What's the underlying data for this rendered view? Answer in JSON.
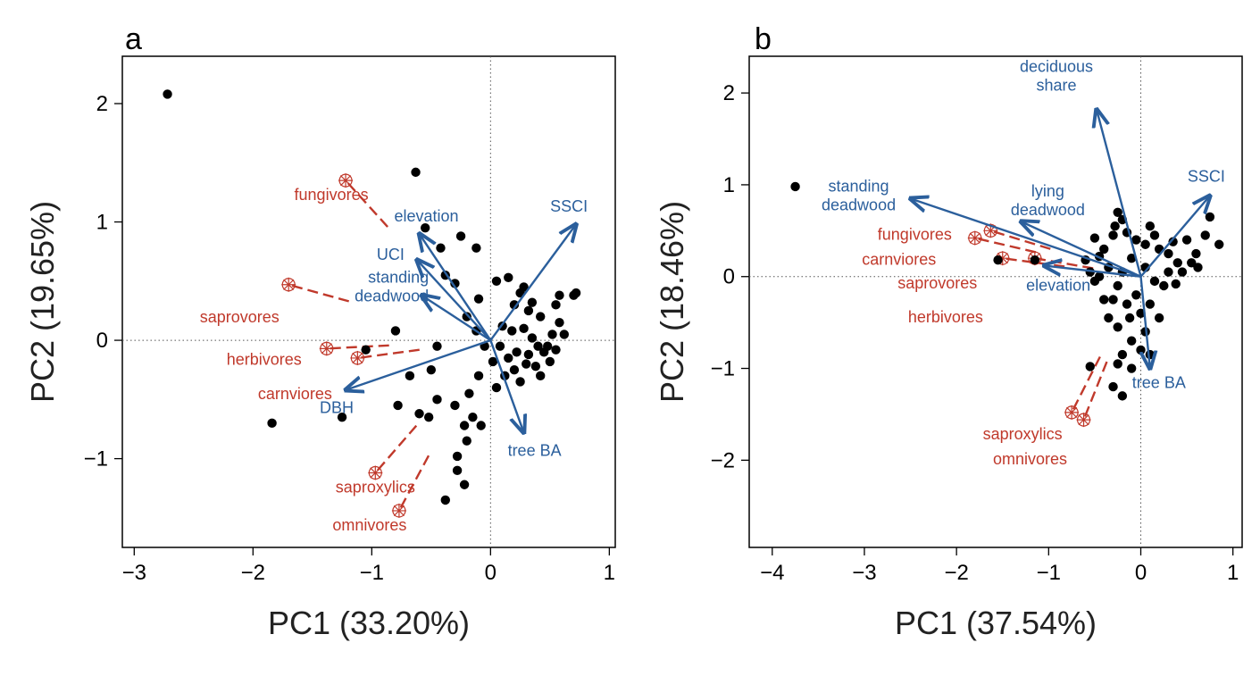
{
  "colors": {
    "env": "#2b5f9c",
    "group": "#c0392b",
    "point": "#000000",
    "refline": "#555555"
  },
  "chart_data": [
    {
      "type": "scatter",
      "panel_label": "a",
      "xlabel": "PC1 (33.20%)",
      "ylabel": "PC2 (19.65%)",
      "xlim": [
        -3.1,
        1.05
      ],
      "ylim": [
        -1.75,
        2.4
      ],
      "xticks": [
        -3,
        -2,
        -1,
        0,
        1
      ],
      "yticks": [
        -1,
        0,
        1,
        2
      ],
      "x_tick_labels": [
        "−3",
        "−2",
        "−1",
        "0",
        "1"
      ],
      "y_tick_labels": [
        "−1",
        "0",
        "1",
        "2"
      ],
      "ref_lines": {
        "x": 0,
        "y": 0,
        "style": "dotted"
      },
      "points": [
        [
          -2.72,
          2.08
        ],
        [
          -1.84,
          -0.7
        ],
        [
          -1.25,
          -0.65
        ],
        [
          -0.63,
          1.42
        ],
        [
          -0.55,
          0.95
        ],
        [
          -0.42,
          0.78
        ],
        [
          -0.38,
          0.55
        ],
        [
          -0.3,
          0.48
        ],
        [
          -0.25,
          0.88
        ],
        [
          -0.2,
          0.2
        ],
        [
          -0.12,
          0.78
        ],
        [
          -0.1,
          0.35
        ],
        [
          -0.45,
          -0.05
        ],
        [
          -0.5,
          -0.25
        ],
        [
          -0.68,
          -0.3
        ],
        [
          -0.78,
          -0.55
        ],
        [
          -0.6,
          -0.62
        ],
        [
          -0.52,
          -0.65
        ],
        [
          -0.45,
          -0.5
        ],
        [
          -0.3,
          -0.55
        ],
        [
          -0.22,
          -0.72
        ],
        [
          -0.2,
          -0.85
        ],
        [
          -0.28,
          -0.98
        ],
        [
          -0.28,
          -1.1
        ],
        [
          -0.22,
          -1.22
        ],
        [
          -0.38,
          -1.35
        ],
        [
          -0.15,
          -0.65
        ],
        [
          -0.08,
          -0.72
        ],
        [
          -0.18,
          -0.45
        ],
        [
          -0.1,
          -0.3
        ],
        [
          -0.05,
          -0.05
        ],
        [
          -0.8,
          0.08
        ],
        [
          -1.05,
          -0.08
        ],
        [
          -0.12,
          0.08
        ],
        [
          0.05,
          0.5
        ],
        [
          0.15,
          0.53
        ],
        [
          0.25,
          0.4
        ],
        [
          0.2,
          0.3
        ],
        [
          0.32,
          0.25
        ],
        [
          0.42,
          0.2
        ],
        [
          0.55,
          0.3
        ],
        [
          0.52,
          0.05
        ],
        [
          0.58,
          0.38
        ],
        [
          0.7,
          0.38
        ],
        [
          0.72,
          0.4
        ],
        [
          0.1,
          0.12
        ],
        [
          0.18,
          0.08
        ],
        [
          0.28,
          0.1
        ],
        [
          0.35,
          0.02
        ],
        [
          0.4,
          -0.05
        ],
        [
          0.45,
          -0.1
        ],
        [
          0.5,
          -0.18
        ],
        [
          0.3,
          -0.2
        ],
        [
          0.2,
          -0.25
        ],
        [
          0.15,
          -0.15
        ],
        [
          0.08,
          -0.05
        ],
        [
          0.22,
          -0.1
        ],
        [
          0.38,
          -0.22
        ],
        [
          0.25,
          -0.35
        ],
        [
          0.12,
          -0.3
        ],
        [
          0.05,
          -0.4
        ],
        [
          0.02,
          -0.18
        ],
        [
          0.32,
          -0.12
        ],
        [
          0.42,
          -0.3
        ],
        [
          0.48,
          -0.05
        ],
        [
          0.58,
          0.15
        ],
        [
          0.62,
          0.05
        ],
        [
          0.55,
          -0.08
        ],
        [
          0.35,
          0.32
        ],
        [
          0.28,
          0.45
        ]
      ],
      "env_vectors": [
        {
          "label": "SSCI",
          "x": 0.72,
          "y": 0.98
        },
        {
          "label": "elevation",
          "x": -0.6,
          "y": 0.9
        },
        {
          "label": "UCI",
          "x": -0.62,
          "y": 0.68
        },
        {
          "label": "standing\ndeadwood",
          "x": -0.58,
          "y": 0.38
        },
        {
          "label": "DBH",
          "x": -1.22,
          "y": -0.42
        },
        {
          "label": "tree BA",
          "x": 0.28,
          "y": -0.78
        }
      ],
      "group_vectors": [
        {
          "label": "fungivores",
          "x": -1.22,
          "y": 1.35
        },
        {
          "label": "saprovores",
          "x": -1.7,
          "y": 0.47
        },
        {
          "label": "herbivores",
          "x": -1.38,
          "y": -0.07
        },
        {
          "label": "carnviores",
          "x": -1.12,
          "y": -0.15
        },
        {
          "label": "saproxylics",
          "x": -0.97,
          "y": -1.12
        },
        {
          "label": "omnivores",
          "x": -0.77,
          "y": -1.44
        }
      ]
    },
    {
      "type": "scatter",
      "panel_label": "b",
      "xlabel": "PC1 (37.54%)",
      "ylabel": "PC2 (18.46%)",
      "xlim": [
        -4.25,
        1.1
      ],
      "ylim": [
        -2.95,
        2.4
      ],
      "xticks": [
        -4,
        -3,
        -2,
        -1,
        0,
        1
      ],
      "yticks": [
        -2,
        -1,
        0,
        1,
        2
      ],
      "x_tick_labels": [
        "−4",
        "−3",
        "−2",
        "−1",
        "0",
        "1"
      ],
      "y_tick_labels": [
        "−2",
        "−1",
        "0",
        "1",
        "2"
      ],
      "ref_lines": {
        "x": 0,
        "y": 0,
        "style": "dotted"
      },
      "points": [
        [
          -3.75,
          0.98
        ],
        [
          -1.55,
          0.18
        ],
        [
          -1.15,
          0.18
        ],
        [
          -0.55,
          0.05
        ],
        [
          -0.5,
          -0.05
        ],
        [
          -0.6,
          0.18
        ],
        [
          -0.45,
          0.22
        ],
        [
          -0.25,
          0.7
        ],
        [
          -0.2,
          0.62
        ],
        [
          -0.3,
          0.45
        ],
        [
          -0.4,
          0.3
        ],
        [
          -0.35,
          0.1
        ],
        [
          -0.5,
          0.42
        ],
        [
          -0.15,
          0.48
        ],
        [
          -0.05,
          0.4
        ],
        [
          0.05,
          0.35
        ],
        [
          0.15,
          0.45
        ],
        [
          0.2,
          0.3
        ],
        [
          0.35,
          0.38
        ],
        [
          0.5,
          0.4
        ],
        [
          0.6,
          0.25
        ],
        [
          0.75,
          0.65
        ],
        [
          0.85,
          0.35
        ],
        [
          0.4,
          0.15
        ],
        [
          0.3,
          0.05
        ],
        [
          0.25,
          -0.1
        ],
        [
          0.15,
          -0.05
        ],
        [
          0.05,
          0.1
        ],
        [
          -0.1,
          0.2
        ],
        [
          -0.2,
          0.05
        ],
        [
          -0.25,
          -0.1
        ],
        [
          -0.3,
          -0.25
        ],
        [
          -0.35,
          -0.45
        ],
        [
          -0.25,
          -0.55
        ],
        [
          -0.15,
          -0.3
        ],
        [
          -0.05,
          -0.2
        ],
        [
          0.1,
          -0.3
        ],
        [
          0.2,
          -0.45
        ],
        [
          0.05,
          -0.6
        ],
        [
          -0.1,
          -0.7
        ],
        [
          -0.2,
          -0.85
        ],
        [
          -0.25,
          -0.95
        ],
        [
          -0.3,
          -1.2
        ],
        [
          -0.2,
          -1.3
        ],
        [
          -0.55,
          -0.98
        ],
        [
          -0.1,
          -1.0
        ],
        [
          0.0,
          -0.8
        ],
        [
          0.1,
          -0.85
        ],
        [
          -0.4,
          -0.25
        ],
        [
          -0.45,
          0.0
        ],
        [
          0.45,
          0.05
        ],
        [
          0.55,
          0.15
        ],
        [
          0.3,
          0.25
        ],
        [
          0.1,
          0.55
        ],
        [
          -0.28,
          0.55
        ],
        [
          0.7,
          0.45
        ],
        [
          0.62,
          0.1
        ],
        [
          0.38,
          -0.08
        ],
        [
          -0.12,
          -0.45
        ],
        [
          0.0,
          -0.4
        ]
      ],
      "env_vectors": [
        {
          "label": "deciduous\nshare",
          "x": -0.48,
          "y": 1.82
        },
        {
          "label": "standing\ndeadwood",
          "x": -2.5,
          "y": 0.85
        },
        {
          "label": "lying\ndeadwood",
          "x": -1.3,
          "y": 0.6
        },
        {
          "label": "SSCI",
          "x": 0.75,
          "y": 0.88
        },
        {
          "label": "elevation",
          "x": -1.05,
          "y": 0.12
        },
        {
          "label": "tree BA",
          "x": 0.1,
          "y": -1.0
        }
      ],
      "group_vectors": [
        {
          "label": "fungivores",
          "x": -1.63,
          "y": 0.5
        },
        {
          "label": "carnviores",
          "x": -1.8,
          "y": 0.42
        },
        {
          "label": "saprovores",
          "x": -1.5,
          "y": 0.2
        },
        {
          "label": "herbivores",
          "x": -1.15,
          "y": 0.2
        },
        {
          "label": "saproxylics",
          "x": -0.75,
          "y": -1.48
        },
        {
          "label": "omnivores",
          "x": -0.62,
          "y": -1.56
        }
      ]
    }
  ]
}
